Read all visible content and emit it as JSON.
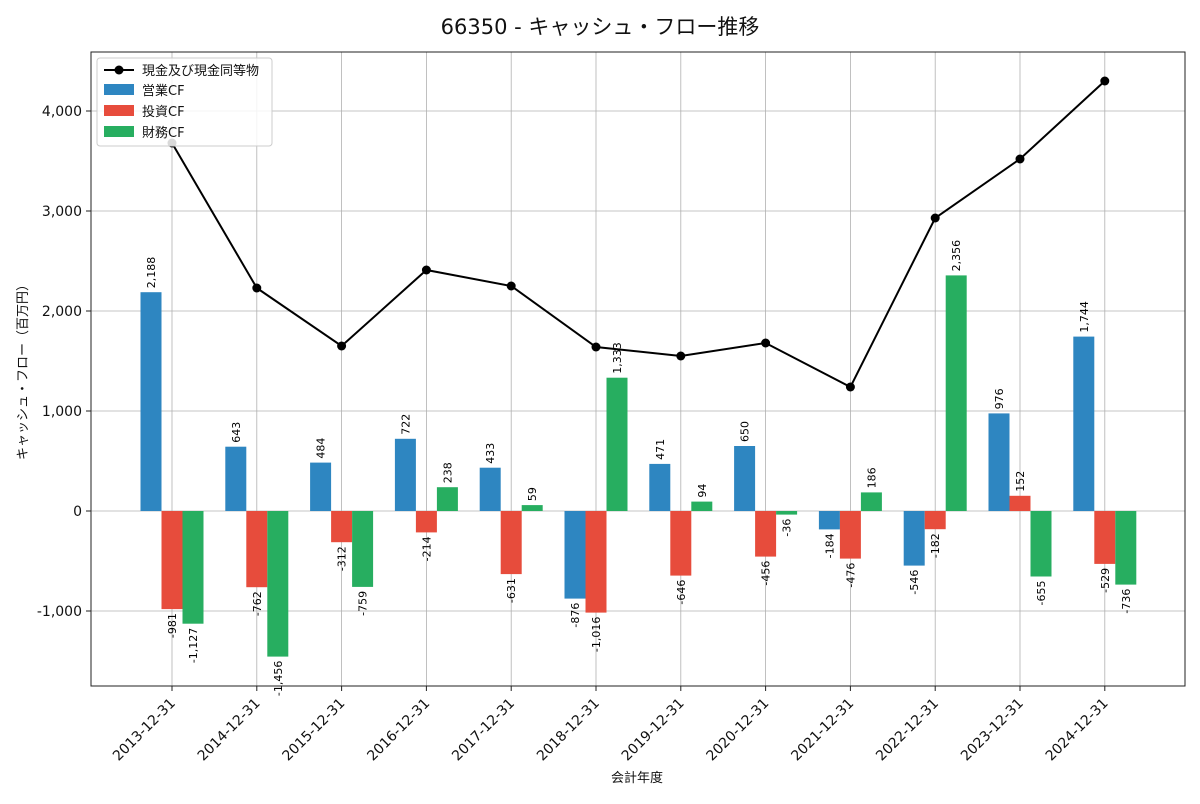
{
  "chart_data": {
    "type": "bar",
    "title": "66350 - キャッシュ・フロー推移",
    "xlabel": "会計年度",
    "ylabel": "キャッシュ・フロー（百万円）",
    "ylim": [
      -1750,
      4600
    ],
    "yticks": [
      -1000,
      0,
      1000,
      2000,
      3000,
      4000
    ],
    "ytick_labels": [
      "-1,000",
      "0",
      "1,000",
      "2,000",
      "3,000",
      "4,000"
    ],
    "grid": true,
    "legend_position": "top-left",
    "categories": [
      "2013-12-31",
      "2014-12-31",
      "2015-12-31",
      "2016-12-31",
      "2017-12-31",
      "2018-12-31",
      "2019-12-31",
      "2020-12-31",
      "2021-12-31",
      "2022-12-31",
      "2023-12-31",
      "2024-12-31"
    ],
    "series": [
      {
        "name": "営業CF",
        "kind": "bar",
        "color": "#2e86c1",
        "values": [
          2188,
          643,
          484,
          722,
          433,
          -876,
          471,
          650,
          -184,
          -546,
          976,
          1744
        ],
        "labels": [
          "2,188",
          "643",
          "484",
          "722",
          "433",
          "-876",
          "471",
          "650",
          "-184",
          "-546",
          "976",
          "1,744"
        ]
      },
      {
        "name": "投資CF",
        "kind": "bar",
        "color": "#e74c3c",
        "values": [
          -981,
          -762,
          -312,
          -214,
          -631,
          -1016,
          -646,
          -456,
          -476,
          -182,
          152,
          -529
        ],
        "labels": [
          "-981",
          "-762",
          "-312",
          "-214",
          "-631",
          "-1,016",
          "-646",
          "-456",
          "-476",
          "-182",
          "152",
          "-529"
        ]
      },
      {
        "name": "財務CF",
        "kind": "bar",
        "color": "#27ae60",
        "values": [
          -1127,
          -1456,
          -759,
          238,
          59,
          1333,
          94,
          -36,
          186,
          2356,
          -655,
          -736
        ],
        "labels": [
          "-1,127",
          "-1,456",
          "-759",
          "238",
          "59",
          "1,333",
          "94",
          "-36",
          "186",
          "2,356",
          "-655",
          "-736"
        ]
      },
      {
        "name": "現金及び現金同等物",
        "kind": "line",
        "color": "#000000",
        "values": [
          3680,
          2230,
          1650,
          2410,
          2250,
          1640,
          1550,
          1680,
          1240,
          2930,
          3520,
          4300
        ]
      }
    ]
  }
}
